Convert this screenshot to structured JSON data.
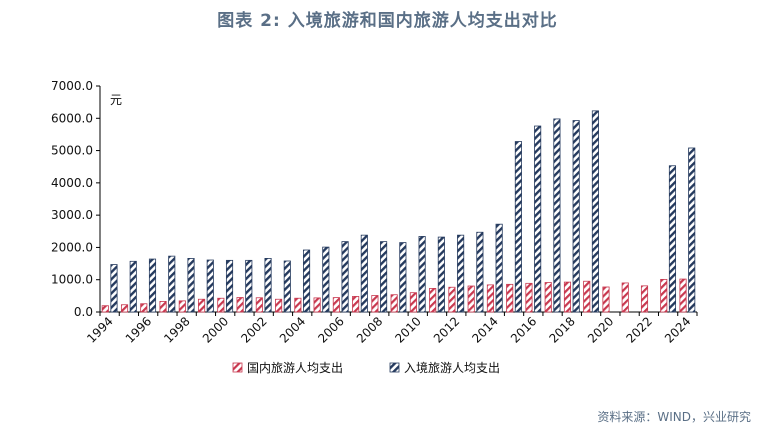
{
  "title": "图表 2:  入境旅游和国内旅游人均支出对比",
  "source": "资料来源：WIND，兴业研究",
  "colors": {
    "domestic": "#c8384f",
    "inbound": "#253a5e",
    "title": "#5a6f86"
  },
  "chart_data": {
    "type": "bar",
    "unit": "元",
    "ylim": [
      0,
      7000
    ],
    "yticks": [
      "7000.0",
      "6000.0",
      "5000.0",
      "4000.0",
      "3000.0",
      "2000.0",
      "1000.0",
      "0.0"
    ],
    "ytick_values": [
      7000,
      6000,
      5000,
      4000,
      3000,
      2000,
      1000,
      0
    ],
    "categories": [
      "1994",
      "1995",
      "1996",
      "1997",
      "1998",
      "1999",
      "2000",
      "2001",
      "2002",
      "2003",
      "2004",
      "2005",
      "2006",
      "2007",
      "2008",
      "2009",
      "2010",
      "2011",
      "2012",
      "2013",
      "2014",
      "2015",
      "2016",
      "2017",
      "2018",
      "2019",
      "2020",
      "2021",
      "2022",
      "2023",
      "2024"
    ],
    "xtick_labels": [
      "1994",
      "1996",
      "1998",
      "2000",
      "2002",
      "2004",
      "2006",
      "2008",
      "2010",
      "2012",
      "2014",
      "2016",
      "2018",
      "2020",
      "2022",
      "2024"
    ],
    "series": [
      {
        "name": "国内旅游人均支出",
        "pattern": "diagonal-red",
        "values": [
          195,
          225,
          256,
          328,
          345,
          395,
          426,
          449,
          441,
          395,
          427,
          437,
          446,
          482,
          511,
          535,
          598,
          731,
          767,
          805,
          840,
          857,
          888,
          913,
          926,
          953,
          775,
          900,
          810,
          1010,
          1020
        ]
      },
      {
        "name": "入境旅游人均支出",
        "pattern": "diagonal-navy",
        "values": [
          1470,
          1570,
          1640,
          1730,
          1660,
          1610,
          1600,
          1600,
          1660,
          1580,
          1920,
          2010,
          2180,
          2380,
          2180,
          2150,
          2340,
          2320,
          2380,
          2470,
          2720,
          5280,
          5760,
          5980,
          5930,
          6230,
          null,
          null,
          null,
          4530,
          5080
        ]
      }
    ],
    "legend_position": "bottom"
  }
}
